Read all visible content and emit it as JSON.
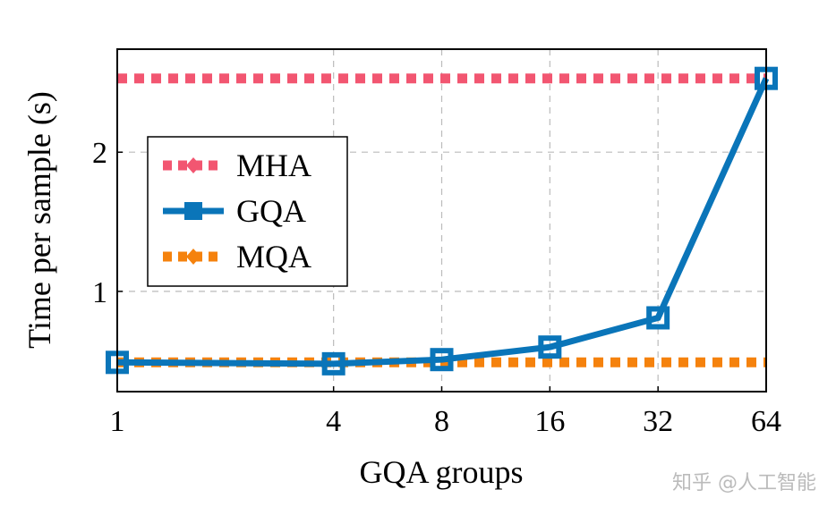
{
  "chart_data": {
    "type": "line",
    "xlabel": "GQA groups",
    "ylabel": "Time per sample (s)",
    "x_scale": "log2",
    "x": [
      1,
      4,
      8,
      16,
      32,
      64
    ],
    "x_tick_labels": [
      "1",
      "4",
      "8",
      "16",
      "32",
      "64"
    ],
    "y_ticks": [
      1,
      2
    ],
    "y_tick_labels": [
      "1",
      "2"
    ],
    "xlim": [
      1,
      64
    ],
    "ylim": [
      0.28,
      2.74
    ],
    "grid": true,
    "legend_position": "center-left",
    "series": [
      {
        "name": "MHA",
        "values": [
          2.53,
          2.53,
          2.53,
          2.53,
          2.53,
          2.53
        ],
        "color": "#f25671",
        "style": "dotted",
        "marker": "diamond"
      },
      {
        "name": "GQA",
        "values": [
          0.49,
          0.48,
          0.51,
          0.6,
          0.81,
          2.53
        ],
        "color": "#0a75b9",
        "style": "solid",
        "marker": "square"
      },
      {
        "name": "MQA",
        "values": [
          0.49,
          0.49,
          0.49,
          0.49,
          0.49,
          0.49
        ],
        "color": "#f5820d",
        "style": "dotted",
        "marker": "diamond"
      }
    ]
  },
  "watermark": "知乎 @人工智能"
}
